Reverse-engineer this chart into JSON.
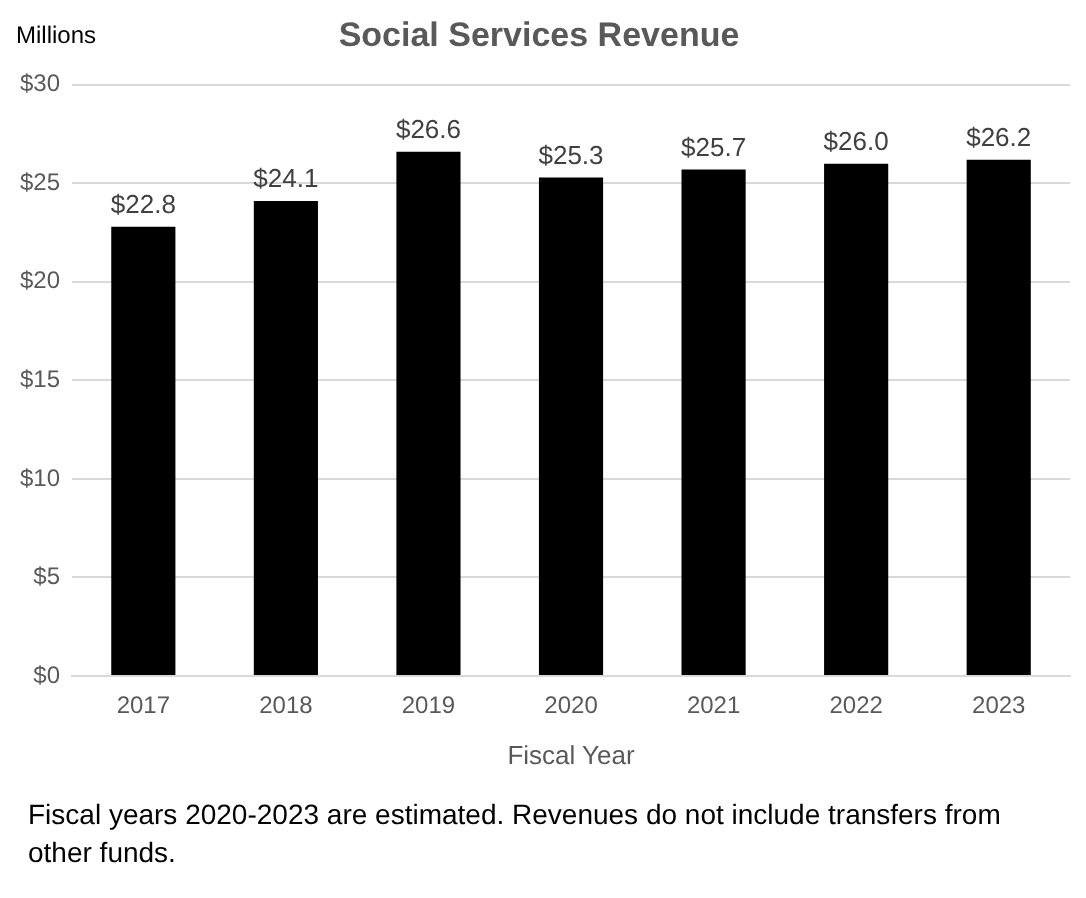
{
  "chart_data": {
    "type": "bar",
    "title": "Social Services Revenue",
    "xlabel": "Fiscal Year",
    "ylabel": "Millions",
    "categories": [
      "2017",
      "2018",
      "2019",
      "2020",
      "2021",
      "2022",
      "2023"
    ],
    "values": [
      22.8,
      24.1,
      26.6,
      25.3,
      25.7,
      26.0,
      26.2
    ],
    "value_labels": [
      "$22.8",
      "$24.1",
      "$26.6",
      "$25.3",
      "$25.7",
      "$26.0",
      "$26.2"
    ],
    "color": "#000000",
    "ylim": [
      0,
      30
    ],
    "yticks": [
      {
        "value": 0,
        "label": "$0"
      },
      {
        "value": 5,
        "label": "$5"
      },
      {
        "value": 10,
        "label": "$10"
      },
      {
        "value": 15,
        "label": "$15"
      },
      {
        "value": 20,
        "label": "$20"
      },
      {
        "value": 25,
        "label": "$25"
      },
      {
        "value": 30,
        "label": "$30"
      }
    ],
    "grid": "y",
    "annotations": [
      "Fiscal years 2020-2023 are estimated. Revenues do not include transfers from other funds."
    ]
  }
}
